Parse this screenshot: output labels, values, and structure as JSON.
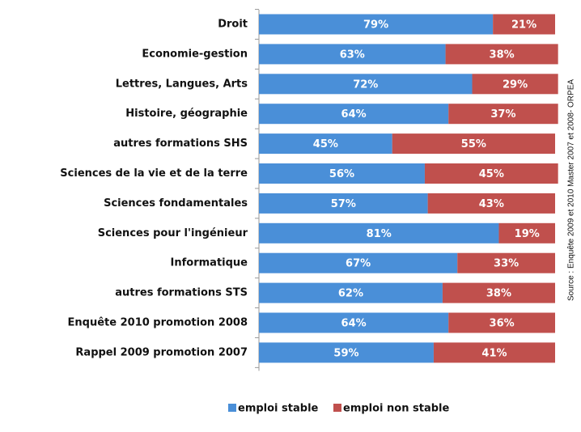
{
  "chart_data": {
    "type": "stacked-bar-horizontal",
    "categories": [
      "Droit",
      "Economie-gestion",
      "Lettres, Langues, Arts",
      "Histoire, géographie",
      "autres formations SHS",
      "Sciences de la vie et de la terre",
      "Sciences fondamentales",
      "Sciences pour l'ingénieur",
      "Informatique",
      "autres formations STS",
      "Enquête 2010 promotion 2008",
      "Rappel 2009 promotion 2007"
    ],
    "series": [
      {
        "name": "emploi stable",
        "color": "#4a8fd8",
        "values": [
          79,
          63,
          72,
          64,
          45,
          56,
          57,
          81,
          67,
          62,
          64,
          59
        ],
        "value_labels": [
          "79%",
          "63%",
          "72%",
          "64%",
          "45%",
          "56%",
          "57%",
          "81%",
          "67%",
          "62%",
          "64%",
          "59%"
        ]
      },
      {
        "name": "emploi non stable",
        "color": "#c0504d",
        "values": [
          21,
          38,
          29,
          37,
          55,
          45,
          43,
          19,
          33,
          38,
          36,
          41
        ],
        "value_labels": [
          "21%",
          "38%",
          "29%",
          "37%",
          "55%",
          "45%",
          "43%",
          "19%",
          "33%",
          "38%",
          "36%",
          "41%"
        ]
      }
    ],
    "xlim": [
      0,
      100
    ],
    "source": "Source : Enquête 2009 et 2010 Master 2007 et 2008- ORPEA"
  }
}
